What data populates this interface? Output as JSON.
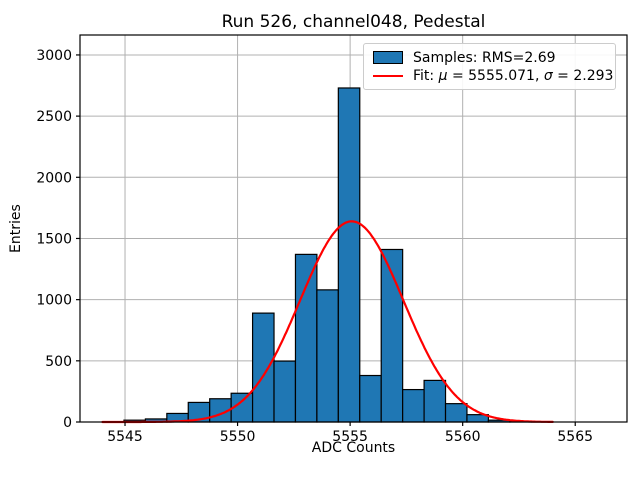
{
  "title": "Run 526, channel048, Pedestal",
  "colors": {
    "bar_fill": "#1f77b4",
    "bar_edge": "#000000",
    "fit_line": "#ff0000",
    "grid": "#b0b0b0",
    "axes_edge": "#000000",
    "background": "#ffffff",
    "legend_border": "#cccccc",
    "text": "#000000"
  },
  "legend": {
    "samples_label": "Samples: RMS=2.69",
    "fit_label": {
      "prefix": "Fit: ",
      "mu_symbol": "μ",
      "mu_value": " = 5555.071, ",
      "sigma_symbol": "σ",
      "sigma_value": " = 2.293"
    }
  },
  "chart_data": {
    "type": "bar",
    "subtype": "histogram",
    "title": "Run 526, channel048, Pedestal",
    "xlabel": "ADC Counts",
    "ylabel": "Entries",
    "xlim": [
      5543.0,
      5567.3
    ],
    "ylim": [
      0,
      3163
    ],
    "x_ticks": [
      5545,
      5550,
      5555,
      5560,
      5565
    ],
    "y_ticks": [
      0,
      500,
      1000,
      1500,
      2000,
      2500,
      3000
    ],
    "grid": true,
    "legend_position": "upper right",
    "legend_entries": [
      "Samples: RMS=2.69",
      "Fit: μ = 5555.071, σ = 2.293"
    ],
    "histogram": {
      "range": [
        5544,
        5564
      ],
      "n_bins": 21,
      "rms": 2.69,
      "adc_values": [
        5544,
        5545,
        5546,
        5547,
        5548,
        5549,
        5550,
        5551,
        5552,
        5553,
        5554,
        5555,
        5556,
        5557,
        5558,
        5559,
        5560,
        5561,
        5562,
        5563,
        5564
      ],
      "counts": [
        2,
        15,
        25,
        70,
        160,
        190,
        235,
        890,
        498,
        1370,
        1080,
        2730,
        380,
        1410,
        265,
        340,
        150,
        60,
        15,
        4,
        2
      ]
    },
    "fit": {
      "type": "gaussian",
      "mu": 5555.071,
      "sigma": 2.293,
      "amplitude": 1640,
      "x_range": [
        5544,
        5564
      ]
    }
  }
}
